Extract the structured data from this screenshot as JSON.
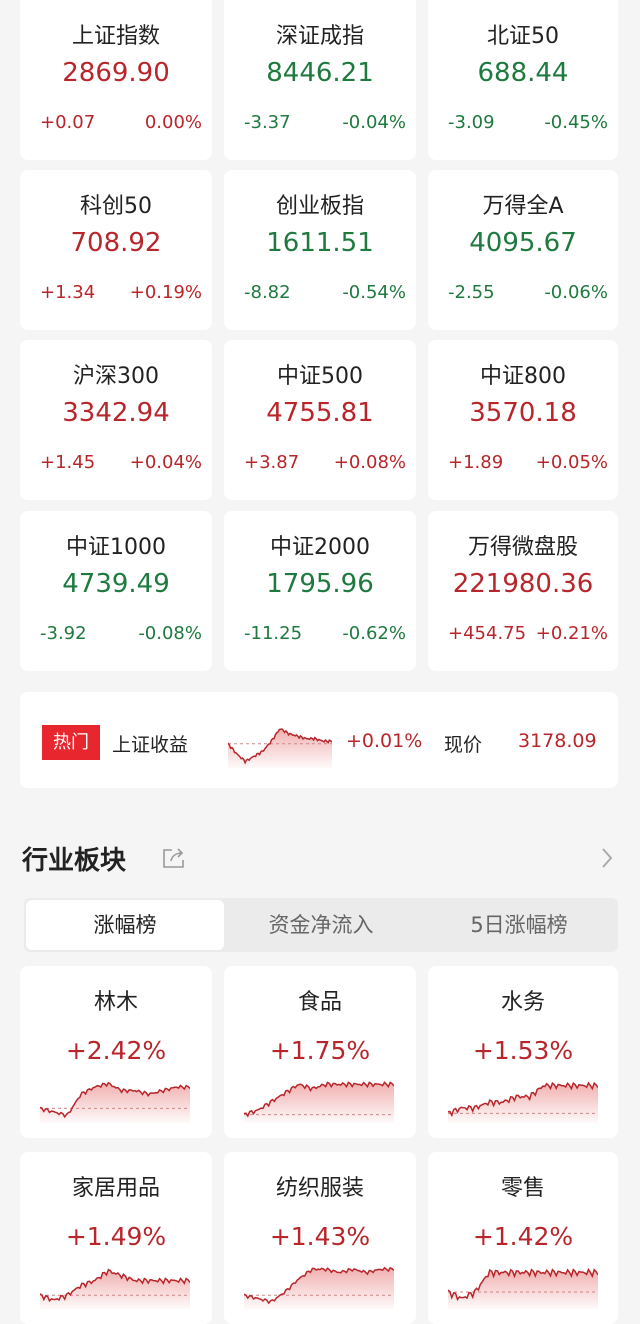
{
  "colors": {
    "up": "#b8262b",
    "down": "#1e7a3e",
    "badge": "#e8262d"
  },
  "indices": [
    {
      "name": "上证指数",
      "price": "2869.90",
      "change": "+0.07",
      "pct": "0.00%",
      "dir": "up"
    },
    {
      "name": "深证成指",
      "price": "8446.21",
      "change": "-3.37",
      "pct": "-0.04%",
      "dir": "down"
    },
    {
      "name": "北证50",
      "price": "688.44",
      "change": "-3.09",
      "pct": "-0.45%",
      "dir": "down"
    },
    {
      "name": "科创50",
      "price": "708.92",
      "change": "+1.34",
      "pct": "+0.19%",
      "dir": "up"
    },
    {
      "name": "创业板指",
      "price": "1611.51",
      "change": "-8.82",
      "pct": "-0.54%",
      "dir": "down"
    },
    {
      "name": "万得全A",
      "price": "4095.67",
      "change": "-2.55",
      "pct": "-0.06%",
      "dir": "down"
    },
    {
      "name": "沪深300",
      "price": "3342.94",
      "change": "+1.45",
      "pct": "+0.04%",
      "dir": "up"
    },
    {
      "name": "中证500",
      "price": "4755.81",
      "change": "+3.87",
      "pct": "+0.08%",
      "dir": "up"
    },
    {
      "name": "中证800",
      "price": "3570.18",
      "change": "+1.89",
      "pct": "+0.05%",
      "dir": "up"
    },
    {
      "name": "中证1000",
      "price": "4739.49",
      "change": "-3.92",
      "pct": "-0.08%",
      "dir": "down"
    },
    {
      "name": "中证2000",
      "price": "1795.96",
      "change": "-11.25",
      "pct": "-0.62%",
      "dir": "down"
    },
    {
      "name": "万得微盘股",
      "price": "221980.36",
      "change": "+454.75",
      "pct": "+0.21%",
      "dir": "up"
    }
  ],
  "hot": {
    "badge": "热门",
    "name": "上证收益",
    "pct": "+0.01%",
    "price_label": "现价",
    "price": "3178.09",
    "spark": [
      2,
      -2,
      -5,
      -3,
      -1,
      3,
      8,
      6,
      5,
      4,
      4,
      3,
      3
    ]
  },
  "section": {
    "title": "行业板块",
    "share_icon": "share-icon",
    "more_icon": "chevron-right-icon"
  },
  "tabs": [
    {
      "label": "涨幅榜",
      "active": true
    },
    {
      "label": "资金净流入"
    },
    {
      "label": "5日涨幅榜"
    }
  ],
  "sectors": [
    {
      "name": "林木",
      "pct": "+2.42%",
      "spark": [
        1,
        0,
        -1,
        5,
        7,
        8,
        6,
        6,
        5,
        6,
        7,
        7
      ]
    },
    {
      "name": "食品",
      "pct": "+1.75%",
      "spark": [
        -1,
        0,
        2,
        4,
        6,
        5,
        6,
        6,
        6,
        6,
        6,
        6
      ]
    },
    {
      "name": "水务",
      "pct": "+1.53%",
      "spark": [
        0,
        1,
        1,
        2,
        2,
        3,
        3,
        5,
        5,
        5,
        5,
        5
      ]
    },
    {
      "name": "家居用品",
      "pct": "+1.49%",
      "spark": [
        1,
        0,
        1,
        3,
        4,
        6,
        5,
        4,
        4,
        4,
        4,
        4
      ]
    },
    {
      "name": "纺织服装",
      "pct": "+1.43%",
      "spark": [
        0,
        -1,
        -2,
        1,
        5,
        8,
        8,
        7,
        8,
        7,
        8,
        8
      ]
    },
    {
      "name": "零售",
      "pct": "+1.42%",
      "spark": [
        1,
        0,
        1,
        4,
        4,
        4,
        4,
        4,
        4,
        4,
        4,
        4
      ]
    }
  ]
}
